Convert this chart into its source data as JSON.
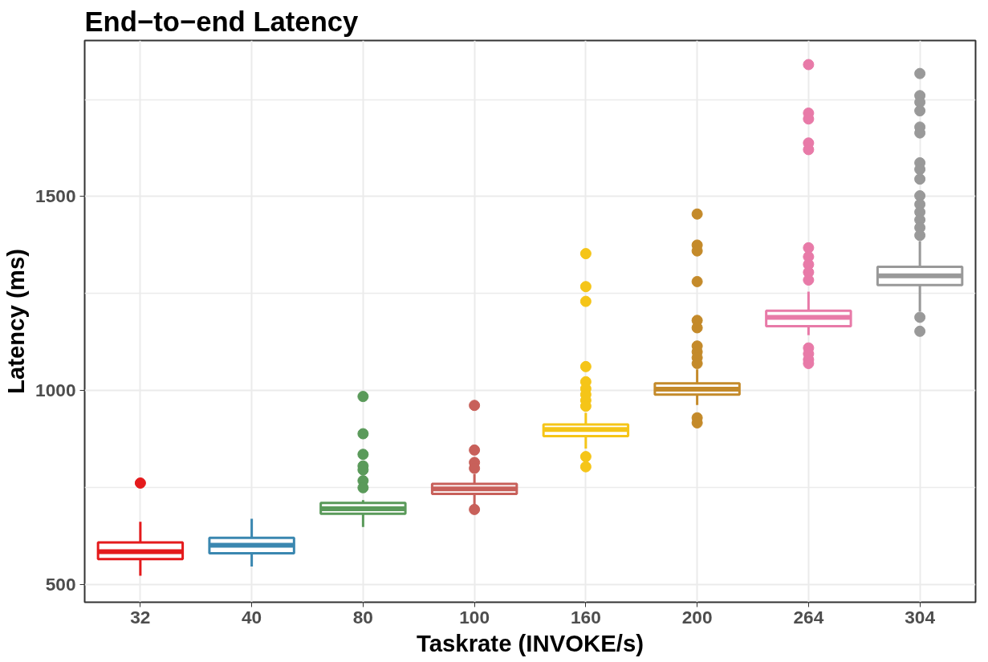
{
  "chart_data": {
    "type": "box",
    "title": "End−to−end Latency",
    "xlabel": "Taskrate (INVOKE/s)",
    "ylabel": "Latency (ms)",
    "categories": [
      "32",
      "40",
      "80",
      "100",
      "160",
      "200",
      "264",
      "304"
    ],
    "colors": [
      "#e41a1c",
      "#3a87b0",
      "#5a9a5a",
      "#c8605a",
      "#f5c518",
      "#c48a2a",
      "#e87aa8",
      "#999999"
    ],
    "ylim": [
      455,
      1902
    ],
    "yticks": [
      500,
      {
        "value": 750,
        "label": null
      },
      1000,
      {
        "value": 1250,
        "label": null
      },
      1500,
      {
        "value": 1750,
        "label": null
      }
    ],
    "grid": true,
    "boxes": [
      {
        "low": 523,
        "q1": 566,
        "median": 585,
        "q3": 609,
        "high": 662,
        "outliers": [
          762
        ]
      },
      {
        "low": 547,
        "q1": 581,
        "median": 602,
        "q3": 621,
        "high": 670
      },
      {
        "low": 649,
        "q1": 683,
        "median": 696,
        "q3": 711,
        "high": 718,
        "outliers": [
          985,
          889,
          836,
          806,
          796,
          768,
          750
        ]
      },
      {
        "low": 706,
        "q1": 734,
        "median": 747,
        "q3": 760,
        "high": 785,
        "outliers": [
          962,
          847,
          815,
          800,
          694
        ]
      },
      {
        "low": 851,
        "q1": 883,
        "median": 900,
        "q3": 913,
        "high": 943,
        "outliers": [
          1353,
          1268,
          1230,
          1062,
          1023,
          1005,
          990,
          975,
          960,
          830,
          804
        ]
      },
      {
        "low": 963,
        "q1": 990,
        "median": 1004,
        "q3": 1019,
        "high": 1055,
        "outliers": [
          1455,
          1375,
          1360,
          1281,
          1181,
          1162,
          1115,
          1100,
          1085,
          1070,
          930,
          917
        ]
      },
      {
        "low": 1143,
        "q1": 1166,
        "median": 1189,
        "q3": 1206,
        "high": 1255,
        "outliers": [
          1840,
          1715,
          1700,
          1638,
          1621,
          1368,
          1345,
          1325,
          1305,
          1285,
          1110,
          1095,
          1080,
          1070
        ]
      },
      {
        "low": 1204,
        "q1": 1272,
        "median": 1296,
        "q3": 1319,
        "high": 1385,
        "outliers": [
          1817,
          1760,
          1743,
          1721,
          1679,
          1664,
          1587,
          1570,
          1545,
          1502,
          1480,
          1460,
          1440,
          1420,
          1400,
          1189,
          1153
        ]
      }
    ]
  }
}
